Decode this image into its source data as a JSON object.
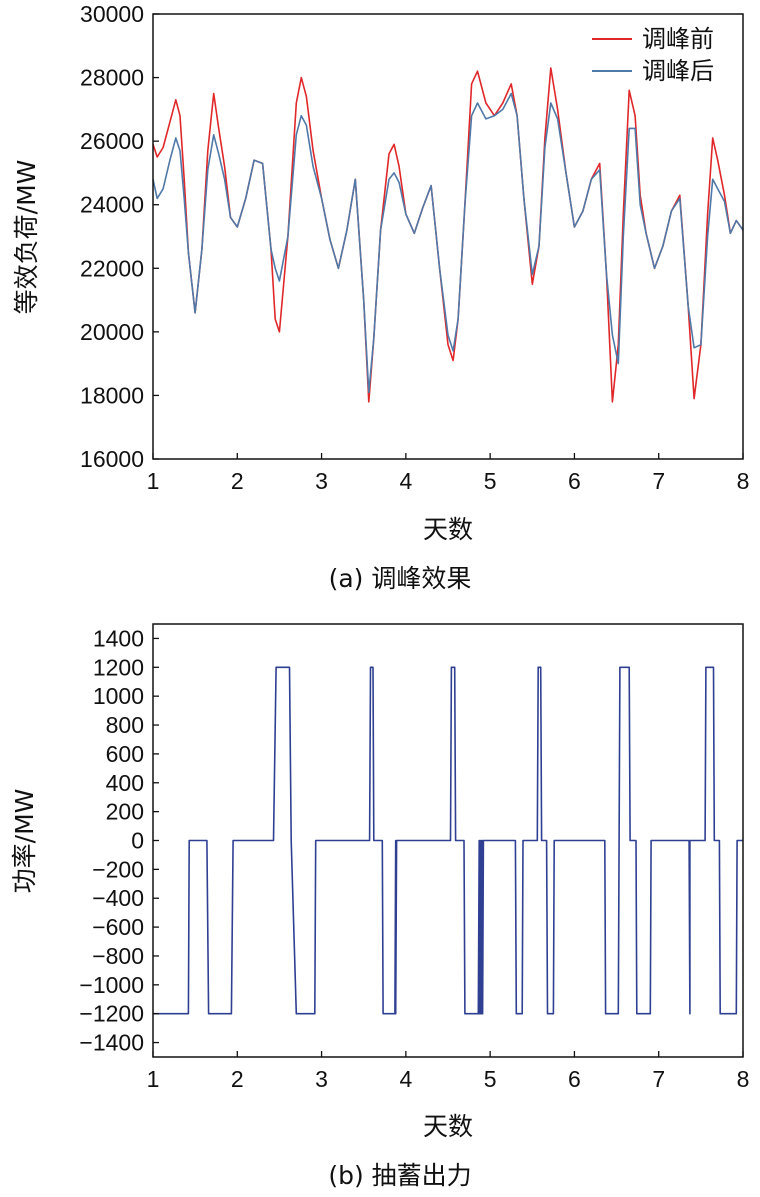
{
  "chart_data": [
    {
      "type": "line",
      "caption": "(a) 调峰效果",
      "xlabel": "天数",
      "ylabel": "等效负荷/MW",
      "xlim": [
        1,
        8
      ],
      "ylim": [
        16000,
        30000
      ],
      "xticks": [
        "1",
        "2",
        "3",
        "4",
        "5",
        "6",
        "7",
        "8"
      ],
      "yticks": [
        "16000",
        "18000",
        "20000",
        "22000",
        "24000",
        "26000",
        "28000",
        "30000"
      ],
      "legend_position": "top-right",
      "grid": false,
      "colors": {
        "series_before": "#e0282a",
        "series_after": "#4f79a8"
      },
      "series": [
        {
          "name": "调峰前",
          "x": [
            1.0,
            1.05,
            1.12,
            1.2,
            1.27,
            1.32,
            1.37,
            1.42,
            1.5,
            1.58,
            1.65,
            1.72,
            1.78,
            1.85,
            1.92,
            2.0,
            2.1,
            2.2,
            2.3,
            2.4,
            2.45,
            2.5,
            2.6,
            2.7,
            2.76,
            2.82,
            2.9,
            3.0,
            3.1,
            3.2,
            3.3,
            3.4,
            3.5,
            3.56,
            3.62,
            3.7,
            3.8,
            3.86,
            3.92,
            4.0,
            4.1,
            4.2,
            4.3,
            4.4,
            4.5,
            4.56,
            4.62,
            4.7,
            4.78,
            4.85,
            4.95,
            5.05,
            5.15,
            5.25,
            5.32,
            5.4,
            5.5,
            5.58,
            5.65,
            5.72,
            5.8,
            5.9,
            6.0,
            6.1,
            6.2,
            6.3,
            6.38,
            6.45,
            6.52,
            6.58,
            6.65,
            6.72,
            6.78,
            6.85,
            6.95,
            7.05,
            7.15,
            7.25,
            7.35,
            7.42,
            7.5,
            7.58,
            7.64,
            7.7,
            7.78,
            7.85,
            7.92,
            8.0
          ],
          "values": [
            25900,
            25500,
            25800,
            26600,
            27300,
            26800,
            24800,
            22500,
            20600,
            22600,
            25700,
            27500,
            26400,
            25200,
            23600,
            23300,
            24200,
            25400,
            25300,
            22600,
            20400,
            20000,
            23000,
            27200,
            28000,
            27400,
            25700,
            24200,
            22900,
            22000,
            23200,
            24800,
            21000,
            17800,
            19800,
            23200,
            25600,
            25900,
            25200,
            23700,
            23100,
            23900,
            24600,
            22000,
            19600,
            19100,
            20400,
            24000,
            27800,
            28200,
            27200,
            26800,
            27200,
            27800,
            26800,
            24200,
            21500,
            22700,
            26100,
            28300,
            27000,
            25000,
            23300,
            23800,
            24800,
            25300,
            21800,
            17800,
            19600,
            23700,
            27600,
            26800,
            24300,
            23100,
            22000,
            22700,
            23800,
            24300,
            20800,
            17900,
            19600,
            23700,
            26100,
            25400,
            24300,
            23100,
            23500,
            23200
          ]
        },
        {
          "name": "调峰后",
          "x": [
            1.0,
            1.05,
            1.12,
            1.2,
            1.27,
            1.32,
            1.37,
            1.42,
            1.5,
            1.58,
            1.65,
            1.72,
            1.78,
            1.85,
            1.92,
            2.0,
            2.1,
            2.2,
            2.3,
            2.4,
            2.45,
            2.5,
            2.6,
            2.7,
            2.76,
            2.82,
            2.9,
            3.0,
            3.1,
            3.2,
            3.3,
            3.4,
            3.5,
            3.56,
            3.62,
            3.7,
            3.8,
            3.86,
            3.92,
            4.0,
            4.1,
            4.2,
            4.3,
            4.4,
            4.5,
            4.56,
            4.62,
            4.7,
            4.78,
            4.85,
            4.95,
            5.05,
            5.15,
            5.25,
            5.32,
            5.4,
            5.5,
            5.58,
            5.65,
            5.72,
            5.8,
            5.9,
            6.0,
            6.1,
            6.2,
            6.3,
            6.38,
            6.45,
            6.52,
            6.58,
            6.65,
            6.72,
            6.78,
            6.85,
            6.95,
            7.05,
            7.15,
            7.25,
            7.35,
            7.42,
            7.5,
            7.58,
            7.64,
            7.7,
            7.78,
            7.85,
            7.92,
            8.0
          ],
          "values": [
            24800,
            24200,
            24500,
            25400,
            26100,
            25700,
            24200,
            22500,
            20600,
            22600,
            25100,
            26200,
            25600,
            24800,
            23600,
            23300,
            24200,
            25400,
            25300,
            22600,
            22000,
            21600,
            23000,
            26200,
            26800,
            26500,
            25200,
            24200,
            22900,
            22000,
            23200,
            24800,
            21000,
            18100,
            19800,
            23200,
            24800,
            25000,
            24700,
            23700,
            23100,
            23900,
            24600,
            22000,
            19900,
            19400,
            20400,
            24000,
            26800,
            27200,
            26700,
            26800,
            27000,
            27500,
            26800,
            24200,
            21800,
            22700,
            25800,
            27200,
            26700,
            25000,
            23300,
            23800,
            24800,
            25100,
            21800,
            19900,
            19000,
            23000,
            26400,
            26400,
            24000,
            23100,
            22000,
            22700,
            23800,
            24200,
            20800,
            19500,
            19600,
            23000,
            24800,
            24500,
            24100,
            23100,
            23500,
            23200
          ]
        }
      ]
    },
    {
      "type": "line",
      "caption": "(b) 抽蓄出力",
      "xlabel": "天数",
      "ylabel": "功率/MW",
      "xlim": [
        1,
        8
      ],
      "ylim": [
        -1500,
        1500
      ],
      "xticks": [
        "1",
        "2",
        "3",
        "4",
        "5",
        "6",
        "7",
        "8"
      ],
      "yticks": [
        "-1400",
        "-1200",
        "-1000",
        "-800",
        "-600",
        "-400",
        "-200",
        "0",
        "200",
        "400",
        "600",
        "800",
        "1000",
        "1200",
        "1400"
      ],
      "grid": false,
      "colors": {
        "series": "#2f3f92"
      },
      "series": [
        {
          "x": [
            1.0,
            1.42,
            1.43,
            1.64,
            1.66,
            1.66,
            1.68,
            1.93,
            1.95,
            1.95,
            2.43,
            2.46,
            2.62,
            2.64,
            2.64,
            2.7,
            2.72,
            2.92,
            2.93,
            2.93,
            3.57,
            3.58,
            3.61,
            3.62,
            3.62,
            3.72,
            3.73,
            3.87,
            3.88,
            3.88,
            3.89,
            3.91,
            3.91,
            4.53,
            4.54,
            4.58,
            4.59,
            4.59,
            4.69,
            4.7,
            4.86,
            4.87,
            4.87,
            4.88,
            4.88,
            4.89,
            4.89,
            4.9,
            4.9,
            4.91,
            4.91,
            4.92,
            4.92,
            5.3,
            5.31,
            5.38,
            5.39,
            5.39,
            5.56,
            5.57,
            5.6,
            5.61,
            5.61,
            5.67,
            5.68,
            5.75,
            5.76,
            5.76,
            6.36,
            6.37,
            6.52,
            6.54,
            6.65,
            6.66,
            6.66,
            6.73,
            6.74,
            6.9,
            6.91,
            6.91,
            7.36,
            7.37,
            7.37,
            7.55,
            7.56,
            7.65,
            7.66,
            7.66,
            7.72,
            7.73,
            7.92,
            7.93,
            7.93,
            8.0
          ],
          "values": [
            -1200,
            -1200,
            0,
            0,
            -1200,
            -1200,
            -1200,
            -1200,
            0,
            0,
            0,
            1200,
            1200,
            0,
            0,
            -1200,
            -1200,
            -1200,
            0,
            0,
            0,
            1200,
            1200,
            0,
            0,
            0,
            -1200,
            -1200,
            0,
            -1200,
            0,
            0,
            0,
            0,
            1200,
            1200,
            0,
            0,
            0,
            -1200,
            -1200,
            0,
            -1200,
            0,
            -1200,
            0,
            -1200,
            0,
            -1200,
            0,
            -1200,
            0,
            0,
            0,
            -1200,
            -1200,
            0,
            0,
            0,
            1200,
            1200,
            0,
            0,
            0,
            -1200,
            -1200,
            0,
            0,
            0,
            -1200,
            -1200,
            1200,
            1200,
            0,
            0,
            0,
            -1200,
            -1200,
            0,
            0,
            0,
            -1200,
            0,
            0,
            1200,
            1200,
            0,
            0,
            0,
            -1200,
            -1200,
            0,
            0,
            0
          ]
        }
      ]
    }
  ]
}
